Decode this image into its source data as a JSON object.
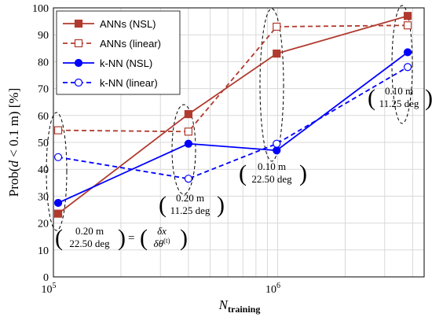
{
  "chart_data": {
    "type": "line",
    "xscale": "log",
    "xlim": [
      100000,
      4500000
    ],
    "ylim": [
      0,
      100
    ],
    "x_ticks": [
      {
        "value": 100000,
        "base": "10",
        "exp": "5"
      },
      {
        "value": 1000000,
        "base": "10",
        "exp": "6"
      }
    ],
    "y_ticks": [
      0,
      10,
      20,
      30,
      40,
      50,
      60,
      70,
      80,
      90,
      100
    ],
    "xlabel": {
      "main": "N",
      "sub": "training"
    },
    "ylabel": {
      "prefix": "Prob(",
      "d": "d",
      "suffix": " < 0.1 m) [%]"
    },
    "grid": true,
    "legend_position": "top-left",
    "series": [
      {
        "name": "ANNs (NSL)",
        "color": "#b03a2e",
        "marker": "square",
        "filled": true,
        "dashed": false,
        "x": [
          105000,
          400000,
          990000,
          3800000
        ],
        "y": [
          23.5,
          60.5,
          83,
          97
        ]
      },
      {
        "name": "ANNs (linear)",
        "color": "#b03a2e",
        "marker": "square",
        "filled": false,
        "dashed": true,
        "x": [
          105000,
          400000,
          990000,
          3800000
        ],
        "y": [
          54.5,
          54,
          93,
          93.5
        ]
      },
      {
        "name": "k-NN (NSL)",
        "color": "#0000ff",
        "marker": "circle",
        "filled": true,
        "dashed": false,
        "x": [
          105000,
          400000,
          990000,
          3800000
        ],
        "y": [
          27.5,
          49.5,
          47,
          83.5
        ]
      },
      {
        "name": "k-NN (linear)",
        "color": "#0000ff",
        "marker": "circle",
        "filled": false,
        "dashed": true,
        "x": [
          105000,
          400000,
          990000,
          3800000
        ],
        "y": [
          44.5,
          36.5,
          49.5,
          78
        ]
      }
    ],
    "annotations": [
      {
        "line1": "0.20 m",
        "line2": "22.50 deg",
        "eq": "=",
        "rhs1": "δx",
        "rhs2": "δθ",
        "rhs2_sup": "(t)"
      },
      {
        "line1": "0.20 m",
        "line2": "11.25 deg"
      },
      {
        "line1": "0.10 m",
        "line2": "22.50 deg"
      },
      {
        "line1": "0.10 m",
        "line2": "11.25 deg"
      }
    ]
  }
}
